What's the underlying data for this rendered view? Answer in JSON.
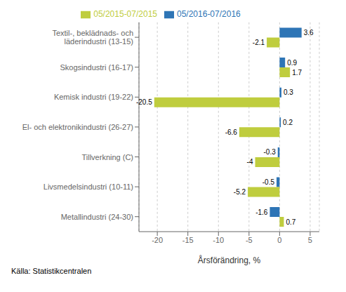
{
  "chart_data": {
    "type": "bar",
    "orientation": "horizontal",
    "categories": [
      "Metallindustri (24-30)",
      "Livsmedelsindustri (10-11)",
      "Tillverkning (C)",
      "El- och elektronikindustri (26-27)",
      "Kemisk industri (19-22)",
      "Skogsindustri (16-17)",
      "Textil-, beklädnads- och\nläderindustri (13-15)"
    ],
    "series": [
      {
        "name": "05/2016-07/2016",
        "color": "#2E75B6",
        "values": [
          -1.6,
          -0.5,
          -0.3,
          0.2,
          0.3,
          0.9,
          3.6
        ]
      },
      {
        "name": "05/2015-07/2015",
        "color": "#BFCD3E",
        "values": [
          0.7,
          -5.2,
          -4.0,
          -6.6,
          -20.5,
          1.7,
          -2.1
        ]
      }
    ],
    "xlabel": "Årsförändring, %",
    "xlim": [
      -23,
      6.5
    ],
    "xticks": [
      -20,
      -15,
      -10,
      -5,
      0,
      5
    ],
    "grid": true,
    "legend": "top",
    "data_labels": true,
    "annotations": [
      "Källa: Statistikcentralen"
    ]
  }
}
